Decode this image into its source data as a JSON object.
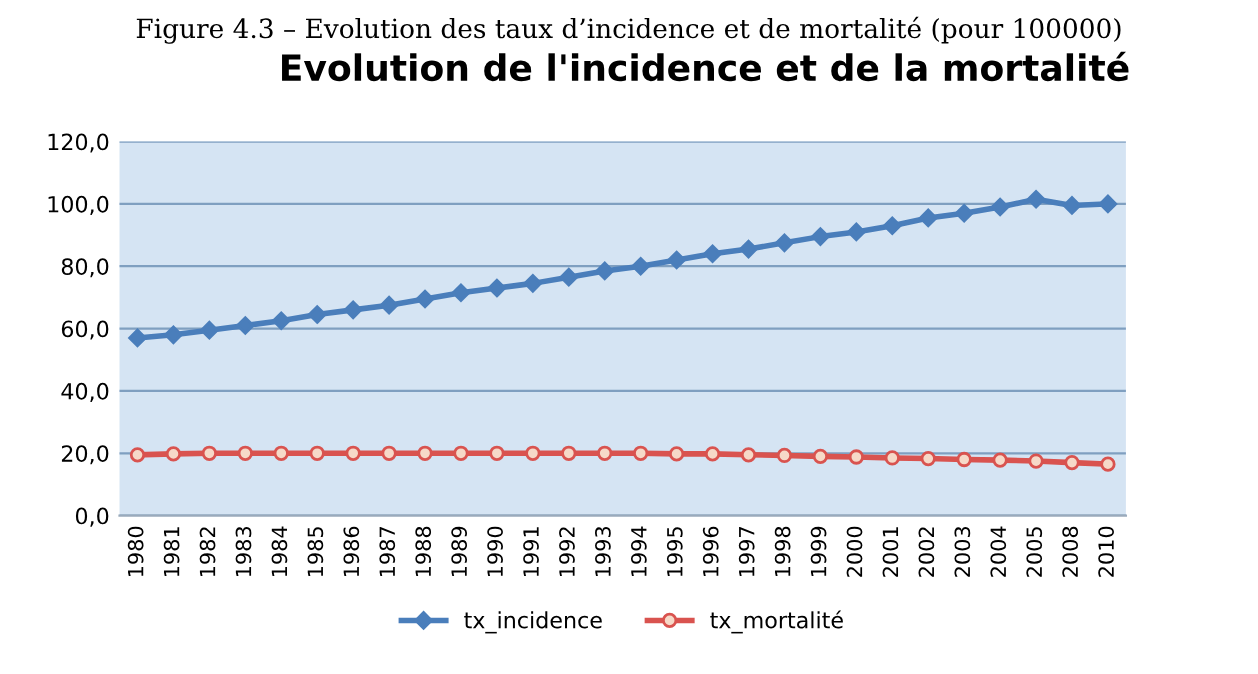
{
  "chart_data": {
    "type": "line",
    "title": "Evolution de l'incidence et de la mortalité",
    "annotations": [
      "Figure 4.3 – Evolution des taux d’incidence et de mortalité (pour 100000)"
    ],
    "categories": [
      "1980",
      "1981",
      "1982",
      "1983",
      "1984",
      "1985",
      "1986",
      "1987",
      "1988",
      "1989",
      "1990",
      "1991",
      "1992",
      "1993",
      "1994",
      "1995",
      "1996",
      "1997",
      "1998",
      "1999",
      "2000",
      "2001",
      "2002",
      "2003",
      "2004",
      "2005",
      "2008",
      "2010"
    ],
    "series": [
      {
        "name": "tx_incidence",
        "color": "#4a7ebb",
        "marker": "diamond",
        "values": [
          57,
          58,
          59.5,
          61,
          62.5,
          64.5,
          66,
          67.5,
          69.5,
          71.5,
          73,
          74.5,
          76.5,
          78.5,
          80,
          82,
          84,
          85.5,
          87.5,
          89.5,
          91,
          93,
          95.5,
          97,
          99,
          101.5,
          99.5,
          100
        ]
      },
      {
        "name": "tx_mortalité",
        "color": "#d9534f",
        "marker": "circle",
        "values": [
          19.5,
          19.8,
          20,
          20,
          20,
          20,
          20,
          20,
          20,
          20,
          20,
          20,
          20,
          20,
          20,
          19.8,
          19.8,
          19.5,
          19.3,
          19,
          18.8,
          18.5,
          18.3,
          18,
          17.8,
          17.5,
          17,
          16.5
        ]
      }
    ],
    "ylim": [
      0,
      120
    ],
    "yticks": [
      {
        "value": 0,
        "label": "0,0"
      },
      {
        "value": 20,
        "label": "20,0"
      },
      {
        "value": 40,
        "label": "40,0"
      },
      {
        "value": 60,
        "label": "60,0"
      },
      {
        "value": 80,
        "label": "80,0"
      },
      {
        "value": 100,
        "label": "100,0"
      },
      {
        "value": 120,
        "label": "120,0"
      }
    ],
    "grid": "y",
    "legend": "bottom",
    "line_style": "solid"
  }
}
